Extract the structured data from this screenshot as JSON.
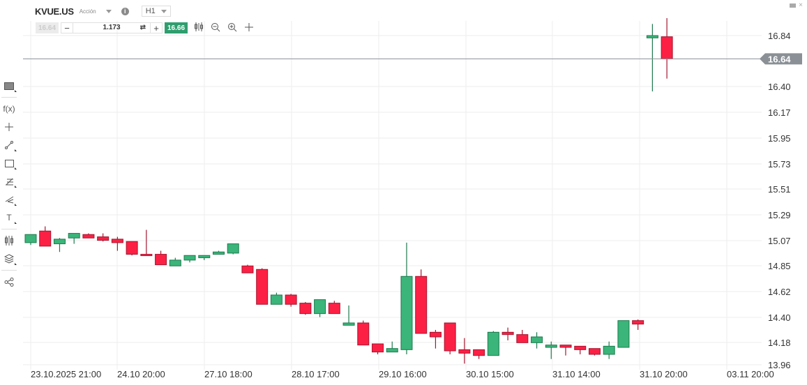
{
  "header": {
    "symbol": "KVUE.US",
    "type": "Acción",
    "timeframe": "H1",
    "info_icon": "info-icon"
  },
  "trade": {
    "sell_price": "16.64",
    "minus": "−",
    "quantity": "1.173",
    "swap_icon": "⇄",
    "plus": "+",
    "buy_price": "16.66"
  },
  "toolbar": {
    "icons": [
      "candles-icon",
      "zoom-out-icon",
      "zoom-in-icon",
      "move-icon"
    ]
  },
  "window": {
    "minimize": "minimize-icon",
    "close": "×"
  },
  "sidebar": {
    "items": [
      "screen-icon",
      "fx-icon",
      "crosshair-icon",
      "trendline-icon",
      "rectangle-icon",
      "fibonacci-icon",
      "pitchfork-icon",
      "text-icon",
      "chart-type-icon",
      "layers-icon",
      "share-icon"
    ]
  },
  "colors": {
    "up": "#3bb57a",
    "up_border": "#1e7a4e",
    "down": "#fd2045",
    "down_border": "#a41630",
    "grid": "#eeeeee",
    "price_line": "#8a9096",
    "price_tag": "#8a9096"
  },
  "chart_data": {
    "type": "candlestick",
    "title": "KVUE.US H1",
    "current_price": "16.64",
    "y_ticks": [
      "16.84",
      "16.40",
      "16.17",
      "15.95",
      "15.73",
      "15.51",
      "15.29",
      "15.07",
      "14.85",
      "14.62",
      "14.40",
      "14.18",
      "13.96"
    ],
    "x_ticks": [
      "23.10.2025 21:00",
      "24.10 20:00",
      "27.10 18:00",
      "28.10 17:00",
      "29.10 16:00",
      "30.10 15:00",
      "31.10 14:00",
      "31.10 20:00",
      "03.11 20:00"
    ],
    "candles": [
      {
        "o": 15.06,
        "h": 15.09,
        "l": 15.04,
        "c": 15.13
      },
      {
        "o": 15.16,
        "h": 15.2,
        "l": 15.04,
        "c": 15.03
      },
      {
        "o": 15.05,
        "h": 15.1,
        "l": 14.98,
        "c": 15.09
      },
      {
        "o": 15.1,
        "h": 15.14,
        "l": 15.05,
        "c": 15.14
      },
      {
        "o": 15.13,
        "h": 15.14,
        "l": 15.1,
        "c": 15.1
      },
      {
        "o": 15.11,
        "h": 15.14,
        "l": 15.07,
        "c": 15.08
      },
      {
        "o": 15.09,
        "h": 15.11,
        "l": 14.99,
        "c": 15.06
      },
      {
        "o": 15.07,
        "h": 15.07,
        "l": 14.95,
        "c": 14.96
      },
      {
        "o": 14.96,
        "h": 15.17,
        "l": 14.95,
        "c": 14.95
      },
      {
        "o": 14.96,
        "h": 14.99,
        "l": 14.88,
        "c": 14.87
      },
      {
        "o": 14.86,
        "h": 14.93,
        "l": 14.86,
        "c": 14.91
      },
      {
        "o": 14.91,
        "h": 14.95,
        "l": 14.89,
        "c": 14.95
      },
      {
        "o": 14.93,
        "h": 14.95,
        "l": 14.91,
        "c": 14.95
      },
      {
        "o": 14.96,
        "h": 14.99,
        "l": 14.96,
        "c": 14.98
      },
      {
        "o": 14.97,
        "h": 15.05,
        "l": 14.96,
        "c": 15.05
      },
      {
        "o": 14.86,
        "h": 14.87,
        "l": 14.81,
        "c": 14.8
      },
      {
        "o": 14.83,
        "h": 14.84,
        "l": 14.53,
        "c": 14.53
      },
      {
        "o": 14.53,
        "h": 14.63,
        "l": 14.53,
        "c": 14.61
      },
      {
        "o": 14.61,
        "h": 14.62,
        "l": 14.51,
        "c": 14.53
      },
      {
        "o": 14.54,
        "h": 14.55,
        "l": 14.44,
        "c": 14.45
      },
      {
        "o": 14.45,
        "h": 14.57,
        "l": 14.42,
        "c": 14.57
      },
      {
        "o": 14.54,
        "h": 14.56,
        "l": 14.45,
        "c": 14.45
      },
      {
        "o": 14.35,
        "h": 14.52,
        "l": 14.35,
        "c": 14.37
      },
      {
        "o": 14.37,
        "h": 14.39,
        "l": 14.18,
        "c": 14.18
      },
      {
        "o": 14.19,
        "h": 14.19,
        "l": 14.1,
        "c": 14.12
      },
      {
        "o": 14.12,
        "h": 14.21,
        "l": 14.12,
        "c": 14.15
      },
      {
        "o": 14.14,
        "h": 15.06,
        "l": 14.1,
        "c": 14.77
      },
      {
        "o": 14.77,
        "h": 14.83,
        "l": 14.28,
        "c": 14.28
      },
      {
        "o": 14.29,
        "h": 14.31,
        "l": 14.15,
        "c": 14.25
      },
      {
        "o": 14.37,
        "h": 14.37,
        "l": 14.1,
        "c": 14.13
      },
      {
        "o": 14.14,
        "h": 14.24,
        "l": 14.02,
        "c": 14.11
      },
      {
        "o": 14.14,
        "h": 14.14,
        "l": 14.06,
        "c": 14.09
      },
      {
        "o": 14.09,
        "h": 14.3,
        "l": 14.09,
        "c": 14.29
      },
      {
        "o": 14.29,
        "h": 14.33,
        "l": 14.22,
        "c": 14.27
      },
      {
        "o": 14.27,
        "h": 14.31,
        "l": 14.2,
        "c": 14.2
      },
      {
        "o": 14.2,
        "h": 14.29,
        "l": 14.15,
        "c": 14.25
      },
      {
        "o": 14.16,
        "h": 14.21,
        "l": 14.06,
        "c": 14.18
      },
      {
        "o": 14.18,
        "h": 14.18,
        "l": 14.09,
        "c": 14.16
      },
      {
        "o": 14.17,
        "h": 14.17,
        "l": 14.1,
        "c": 14.14
      },
      {
        "o": 14.15,
        "h": 14.15,
        "l": 14.09,
        "c": 14.1
      },
      {
        "o": 14.1,
        "h": 14.21,
        "l": 14.06,
        "c": 14.17
      },
      {
        "o": 14.16,
        "h": 14.39,
        "l": 14.16,
        "c": 14.39
      },
      {
        "o": 14.39,
        "h": 14.4,
        "l": 14.31,
        "c": 14.36
      },
      {
        "o": 16.82,
        "h": 16.94,
        "l": 16.36,
        "c": 16.84
      },
      {
        "o": 16.83,
        "h": 16.99,
        "l": 16.47,
        "c": 16.64
      }
    ]
  }
}
